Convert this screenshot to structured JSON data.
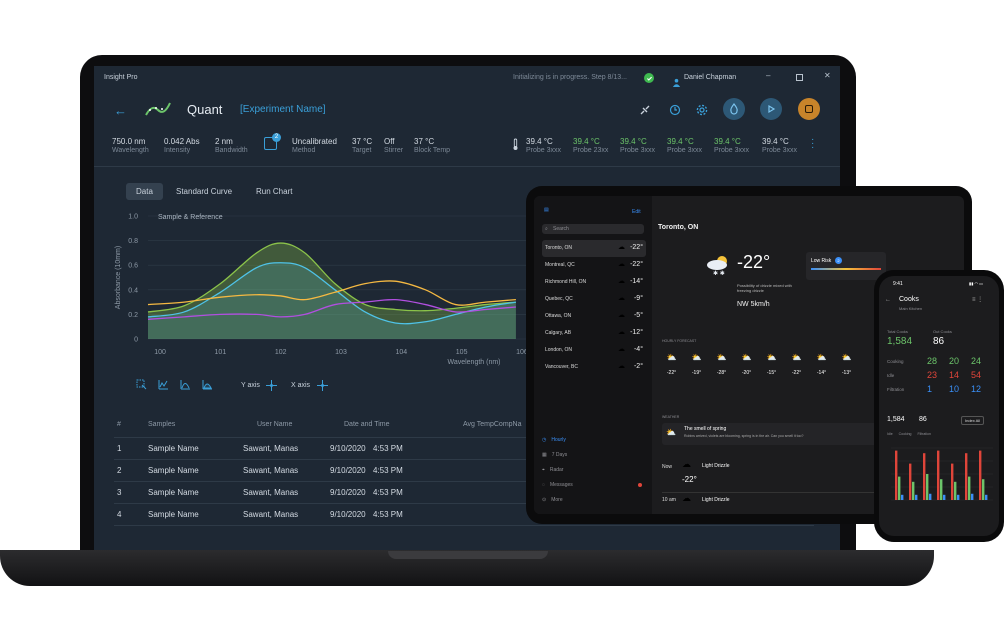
{
  "laptop": {
    "app_title": "Insight Pro",
    "status_text": "Initializing is in progress. Step 8/13...",
    "user_name": "Daniel Chapman",
    "page_title": "Quant",
    "experiment_name": "[Experiment Name]",
    "stats": [
      {
        "value": "750.0 nm",
        "label": "Wavelength"
      },
      {
        "value": "0.042 Abs",
        "label": "Intensity"
      },
      {
        "value": "2 nm",
        "label": "Bandwidth"
      },
      {
        "value": "Uncalibrated",
        "label": "Method"
      },
      {
        "value": "37 °C",
        "label": "Target"
      },
      {
        "value": "Off",
        "label": "Stirrer"
      },
      {
        "value": "37 °C",
        "label": "Block Temp"
      }
    ],
    "method_badge": "2",
    "probes": [
      {
        "value": "39.4 °C",
        "label": "Probe 3xxx"
      },
      {
        "value": "39.4 °C",
        "label": "Probe 23xx"
      },
      {
        "value": "39.4 °C",
        "label": "Probe 3xxx"
      },
      {
        "value": "39.4 °C",
        "label": "Probe 3xxx"
      },
      {
        "value": "39.4 °C",
        "label": "Probe 3xxx"
      },
      {
        "value": "39.4 °C",
        "label": "Probe 3xxx"
      }
    ],
    "tabs": [
      "Data",
      "Standard Curve",
      "Run Chart"
    ],
    "chart_toolbar": {
      "y_axis": "Y axis",
      "x_axis": "X axis"
    },
    "table": {
      "headers": [
        "#",
        "Samples",
        "User Name",
        "Date and Time",
        "Avg TempCompNa"
      ],
      "rows": [
        [
          "1",
          "Sample Name",
          "Sawant, Manas",
          "9/10/2020",
          "4:53 PM"
        ],
        [
          "2",
          "Sample Name",
          "Sawant, Manas",
          "9/10/2020",
          "4:53 PM"
        ],
        [
          "3",
          "Sample Name",
          "Sawant, Manas",
          "9/10/2020",
          "4:53 PM"
        ],
        [
          "4",
          "Sample Name",
          "Sawant, Manas",
          "9/10/2020",
          "4:53 PM"
        ]
      ]
    },
    "colors": {
      "accent": "#3a9fd8",
      "stop": "#c8842a",
      "series_green": "#8bc34a",
      "series_blue": "#4fc3e8",
      "series_orange": "#f5b942",
      "series_purple": "#b14fe0"
    }
  },
  "chart_data": {
    "type": "line",
    "title": "Sample & Reference",
    "xlabel": "Wavelength (nm)",
    "ylabel": "Absorbance (10mm)",
    "x_ticks": [
      "100",
      "101",
      "102",
      "103",
      "104",
      "105",
      "106"
    ],
    "y_ticks": [
      "0",
      "0.2",
      "0.4",
      "0.6",
      "0.8",
      "1.0"
    ],
    "ylim": [
      0,
      1.0
    ],
    "x": [
      99.8,
      100.4,
      101,
      101.6,
      102,
      102.4,
      102.9,
      103.4,
      103.9,
      104.4,
      104.9,
      105.4,
      105.9
    ],
    "series": [
      {
        "color": "#8bc34a",
        "values": [
          0.22,
          0.27,
          0.45,
          0.7,
          0.78,
          0.7,
          0.45,
          0.28,
          0.24,
          0.23,
          0.25,
          0.28,
          0.3
        ]
      },
      {
        "color": "#4fc3e8",
        "values": [
          0.18,
          0.22,
          0.38,
          0.58,
          0.62,
          0.58,
          0.4,
          0.22,
          0.13,
          0.14,
          0.2,
          0.26,
          0.3
        ]
      },
      {
        "color": "#f5b942",
        "values": [
          0.28,
          0.3,
          0.34,
          0.36,
          0.35,
          0.32,
          0.38,
          0.45,
          0.47,
          0.4,
          0.28,
          0.3,
          0.32
        ]
      },
      {
        "color": "#b14fe0",
        "values": [
          0.16,
          0.18,
          0.2,
          0.2,
          0.18,
          0.2,
          0.28,
          0.3,
          0.32,
          0.28,
          0.22,
          0.24,
          0.26
        ]
      }
    ]
  },
  "tablet": {
    "search_placeholder": "Search",
    "edit_label": "Edit",
    "cities": [
      {
        "name": "Toronto, ON",
        "temp": "-22°"
      },
      {
        "name": "Montreal, QC",
        "temp": "-22°"
      },
      {
        "name": "Richmond Hill, ON",
        "temp": "-14°"
      },
      {
        "name": "Quebec, QC",
        "temp": "-9°"
      },
      {
        "name": "Ottawa, ON",
        "temp": "-5°"
      },
      {
        "name": "Calgary, AB",
        "temp": "-12°"
      },
      {
        "name": "London, ON",
        "temp": "-4°"
      },
      {
        "name": "Vancouver, BC",
        "temp": "-2°"
      }
    ],
    "nav": [
      "Hourly",
      "7 Days",
      "Radar",
      "Messages",
      "More"
    ],
    "location": "Toronto, ON",
    "current_temp": "-22°",
    "current_note": "Possibility of drizzle mixed with freezing drizzle",
    "wind": "NW 5km/h",
    "risk_label": "Low Risk",
    "risk_value": "2",
    "hourly_label": "HOURLY FORECAST",
    "hourly_temps": [
      "-22°",
      "-19°",
      "-28°",
      "-20°",
      "-15°",
      "-22°",
      "-14°",
      "-13°"
    ],
    "weather_label": "WEATHER",
    "alert_title": "The smell of spring",
    "alert_text": "Robins arrived, violets are blooming, spring is in the air. Can you smell it too?",
    "forecast_rows": [
      {
        "when": "Now",
        "title": "Light Drizzle",
        "temp": "-22°"
      },
      {
        "when": "10 am",
        "title": "Light Drizzle",
        "temp": ""
      }
    ]
  },
  "phone": {
    "time": "9:41",
    "title": "Cooks",
    "subtitle": "Main Kitchen",
    "total_label": "Total Cooks",
    "total_value": "1,584",
    "out_label": "Out Cooks",
    "out_value": "86",
    "rows": [
      {
        "label": "Cooking",
        "a": "28",
        "b": "20",
        "c": "24"
      },
      {
        "label": "Idle",
        "a": "23",
        "b": "14",
        "c": "54"
      },
      {
        "label": "Filtration",
        "a": "1",
        "b": "10",
        "c": "12"
      }
    ],
    "mini_total": "1,584",
    "mini_out": "86",
    "filter_label": "Index All",
    "legend": [
      "Idle",
      "Cooking",
      "Filtration"
    ],
    "bars_idle": [
      0.95,
      0.7,
      0.9,
      0.95,
      0.7,
      0.9,
      0.95
    ],
    "bars_cook": [
      0.45,
      0.35,
      0.5,
      0.4,
      0.35,
      0.45,
      0.4
    ],
    "bars_filter": [
      0.1,
      0.1,
      0.12,
      0.1,
      0.1,
      0.12,
      0.1
    ]
  }
}
